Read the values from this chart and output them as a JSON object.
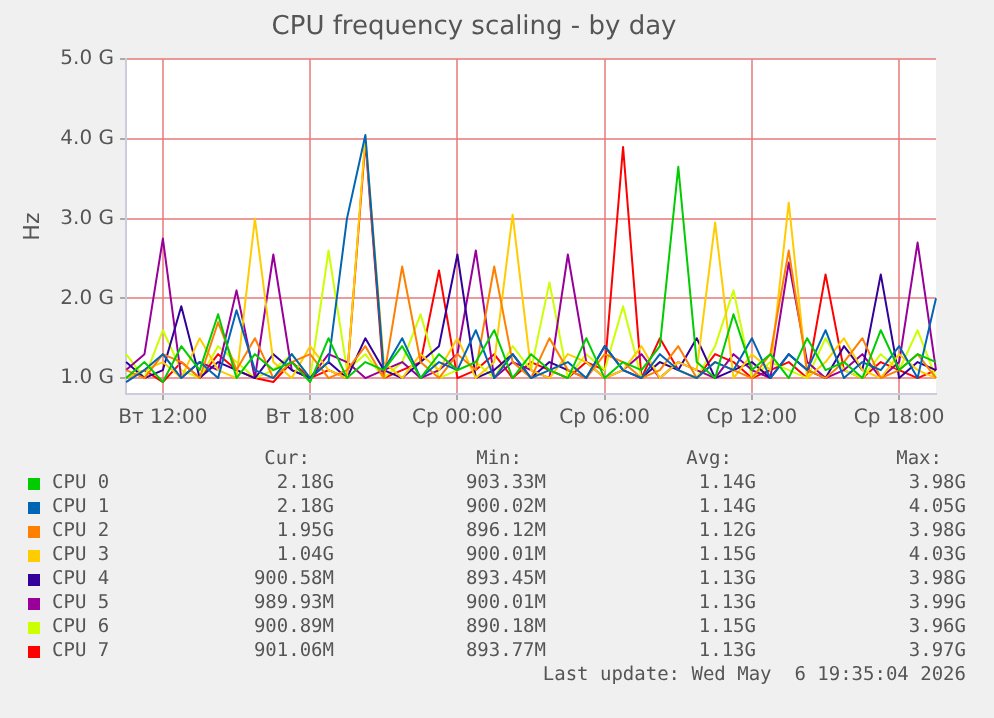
{
  "chart_data": {
    "type": "line",
    "title": "CPU frequency scaling - by day",
    "ylabel": "Hz",
    "categories": [
      null,
      null,
      "Вт 12:00",
      null,
      null,
      null,
      null,
      null,
      null,
      null,
      "Вт 18:00",
      null,
      null,
      null,
      null,
      null,
      null,
      null,
      "Ср 00:00",
      null,
      null,
      null,
      null,
      null,
      null,
      null,
      "Ср 06:00",
      null,
      null,
      null,
      null,
      null,
      null,
      null,
      "Ср 12:00",
      null,
      null,
      null,
      null,
      null,
      null,
      null,
      "Ср 18:00",
      null,
      null
    ],
    "ylim": [
      0.8,
      5.0
    ],
    "yticks": [
      {
        "value": 1,
        "label": "1.0 G"
      },
      {
        "value": 2,
        "label": "2.0 G"
      },
      {
        "value": 3,
        "label": "3.0 G"
      },
      {
        "value": 4,
        "label": "4.0 G"
      },
      {
        "value": 5,
        "label": "5.0 G"
      }
    ],
    "grid": true,
    "legend": "bottom",
    "line_style": "solid",
    "series": [
      {
        "name": "CPU 0",
        "color": "#00cc00",
        "values": [
          1.0,
          1.2,
          0.95,
          1.4,
          1.1,
          1.8,
          1.0,
          1.3,
          1.1,
          1.2,
          0.95,
          1.5,
          1.0,
          1.2,
          1.1,
          1.4,
          1.0,
          1.3,
          1.1,
          1.2,
          1.6,
          1.0,
          1.3,
          1.1,
          1.0,
          1.5,
          1.0,
          1.2,
          1.1,
          1.4,
          3.65,
          1.2,
          1.0,
          1.8,
          1.1,
          1.3,
          1.0,
          1.5,
          1.1,
          1.2,
          1.0,
          1.6,
          1.1,
          1.3,
          1.2
        ]
      },
      {
        "name": "CPU 1",
        "color": "#0066b3",
        "values": [
          0.95,
          1.1,
          1.3,
          1.0,
          1.2,
          1.0,
          1.85,
          1.1,
          1.0,
          1.3,
          1.0,
          1.2,
          3.0,
          4.05,
          1.1,
          1.5,
          1.0,
          1.2,
          1.1,
          1.6,
          1.0,
          1.3,
          1.0,
          1.1,
          1.2,
          1.0,
          1.4,
          1.1,
          1.0,
          1.3,
          1.1,
          1.0,
          1.2,
          1.1,
          1.5,
          1.0,
          1.3,
          1.1,
          1.6,
          1.0,
          1.2,
          1.1,
          1.4,
          1.0,
          2.0
        ]
      },
      {
        "name": "CPU 2",
        "color": "#ff8000",
        "values": [
          1.1,
          1.0,
          1.3,
          1.2,
          1.0,
          1.7,
          1.1,
          1.5,
          1.0,
          1.2,
          1.3,
          1.0,
          1.1,
          1.4,
          1.0,
          2.4,
          1.2,
          1.0,
          1.3,
          1.1,
          2.4,
          1.2,
          1.0,
          1.5,
          1.1,
          1.0,
          1.3,
          1.2,
          1.0,
          1.1,
          1.4,
          1.0,
          1.2,
          1.1,
          1.0,
          1.3,
          2.6,
          1.1,
          1.0,
          1.2,
          1.5,
          1.0,
          1.1,
          1.3,
          1.0
        ]
      },
      {
        "name": "CPU 3",
        "color": "#ffcc00",
        "values": [
          1.0,
          1.1,
          1.2,
          1.0,
          1.5,
          1.1,
          1.0,
          3.0,
          1.2,
          1.0,
          1.4,
          1.1,
          1.0,
          4.03,
          1.2,
          1.0,
          1.3,
          1.1,
          1.5,
          1.0,
          1.2,
          3.05,
          1.1,
          1.0,
          1.3,
          1.2,
          1.0,
          1.1,
          1.4,
          1.0,
          1.2,
          1.1,
          2.95,
          1.0,
          1.3,
          1.1,
          3.2,
          1.0,
          1.2,
          1.5,
          1.1,
          1.0,
          1.3,
          1.1,
          1.0
        ]
      },
      {
        "name": "CPU 4",
        "color": "#330099",
        "values": [
          1.2,
          1.0,
          1.1,
          1.9,
          1.0,
          1.2,
          1.1,
          1.0,
          1.3,
          1.1,
          1.0,
          1.2,
          1.0,
          1.5,
          1.1,
          1.0,
          1.2,
          1.4,
          2.55,
          1.0,
          1.1,
          1.3,
          1.0,
          1.2,
          1.1,
          1.0,
          1.4,
          1.1,
          1.0,
          1.2,
          1.1,
          1.5,
          1.0,
          1.1,
          1.2,
          1.0,
          1.3,
          1.1,
          1.0,
          1.4,
          1.1,
          2.3,
          1.0,
          1.2,
          1.1
        ]
      },
      {
        "name": "CPU 5",
        "color": "#990099",
        "values": [
          1.1,
          1.3,
          2.75,
          1.0,
          1.2,
          1.1,
          2.1,
          1.0,
          2.55,
          1.1,
          1.0,
          1.3,
          1.2,
          1.0,
          1.1,
          1.2,
          1.0,
          1.1,
          1.3,
          2.6,
          1.0,
          1.2,
          1.1,
          1.0,
          2.55,
          1.2,
          1.0,
          1.1,
          1.3,
          1.0,
          1.2,
          1.1,
          1.0,
          1.3,
          1.1,
          1.0,
          2.45,
          1.2,
          1.0,
          1.1,
          1.3,
          1.0,
          1.2,
          2.7,
          1.1
        ]
      },
      {
        "name": "CPU 6",
        "color": "#ccff00",
        "values": [
          1.3,
          1.0,
          1.6,
          1.1,
          1.0,
          1.4,
          1.2,
          1.0,
          1.1,
          1.3,
          1.0,
          2.6,
          1.1,
          1.3,
          1.0,
          1.2,
          1.8,
          1.0,
          1.1,
          1.2,
          1.0,
          1.4,
          1.1,
          2.2,
          1.0,
          1.3,
          1.1,
          1.9,
          1.0,
          1.2,
          1.1,
          1.0,
          1.4,
          2.1,
          1.0,
          1.2,
          1.1,
          1.0,
          1.5,
          1.1,
          1.0,
          1.3,
          1.1,
          1.6,
          1.0
        ]
      },
      {
        "name": "CPU 7",
        "color": "#ff0000",
        "values": [
          1.0,
          1.1,
          0.95,
          1.2,
          1.0,
          1.3,
          1.1,
          1.0,
          0.95,
          1.2,
          1.0,
          1.1,
          1.0,
          3.97,
          1.0,
          1.1,
          1.2,
          2.35,
          1.0,
          1.1,
          1.3,
          1.0,
          1.2,
          1.1,
          1.0,
          1.2,
          1.1,
          3.9,
          1.0,
          1.5,
          1.1,
          1.0,
          1.3,
          1.2,
          1.0,
          1.1,
          1.2,
          1.0,
          2.3,
          1.1,
          1.0,
          1.2,
          1.1,
          1.0,
          1.1
        ]
      }
    ],
    "annotations": [
      "Cur:",
      "Min:",
      "Avg:",
      "Max:",
      "2.18G",
      "903.33M",
      "1.14G",
      "3.98G",
      "2.18G",
      "900.02M",
      "1.14G",
      "4.05G",
      "1.95G",
      "896.12M",
      "1.12G",
      "3.98G",
      "1.04G",
      "900.01M",
      "1.15G",
      "4.03G",
      "900.58M",
      "893.45M",
      "1.13G",
      "3.98G",
      "989.93M",
      "900.01M",
      "1.13G",
      "3.99G",
      "900.89M",
      "890.18M",
      "1.15G",
      "3.96G",
      "901.06M",
      "893.77M",
      "1.13G",
      "3.97G",
      "Last update: Wed May  6 19:35:04 2026"
    ]
  }
}
